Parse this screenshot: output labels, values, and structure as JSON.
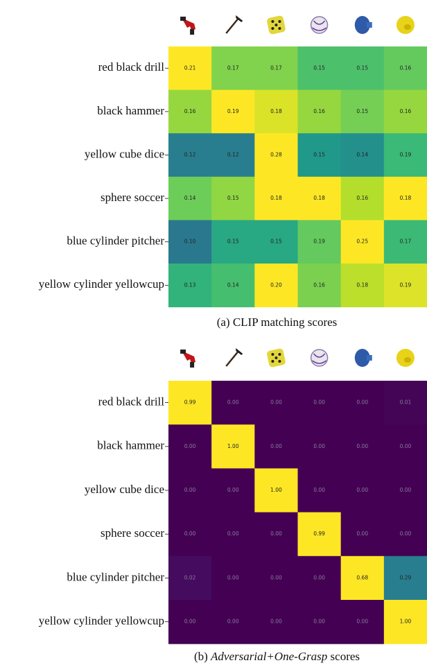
{
  "chart_data": [
    {
      "type": "heatmap",
      "colormap": "viridis",
      "rows": [
        "red black drill",
        "black hammer",
        "yellow cube dice",
        "sphere soccer",
        "blue cylinder pitcher",
        "yellow cylinder yellowcup"
      ],
      "values": [
        [
          0.21,
          0.17,
          0.17,
          0.15,
          0.15,
          0.16
        ],
        [
          0.16,
          0.19,
          0.18,
          0.16,
          0.15,
          0.16
        ],
        [
          0.12,
          0.12,
          0.28,
          0.15,
          0.14,
          0.19
        ],
        [
          0.14,
          0.15,
          0.18,
          0.18,
          0.16,
          0.18
        ],
        [
          0.1,
          0.15,
          0.15,
          0.19,
          0.25,
          0.17
        ],
        [
          0.13,
          0.14,
          0.2,
          0.16,
          0.18,
          0.19
        ]
      ],
      "value_labels": [
        [
          "0.21",
          "0.17",
          "0.17",
          "0.15",
          "0.15",
          "0.16"
        ],
        [
          "0.16",
          "0.19",
          "0.18",
          "0.16",
          "0.15",
          "0.16"
        ],
        [
          "0.12",
          "0.12",
          "0.28",
          "0.15",
          "0.14",
          "0.19"
        ],
        [
          "0.14",
          "0.15",
          "0.18",
          "0.18",
          "0.16",
          "0.18"
        ],
        [
          "0.10",
          "0.15",
          "0.15",
          "0.19",
          "0.25",
          "0.17"
        ],
        [
          "0.13",
          "0.14",
          "0.20",
          "0.16",
          "0.18",
          "0.19"
        ]
      ],
      "caption": "(a) CLIP matching scores"
    },
    {
      "type": "heatmap",
      "colormap": "viridis",
      "rows": [
        "red black drill",
        "black hammer",
        "yellow cube dice",
        "sphere soccer",
        "blue cylinder pitcher",
        "yellow cylinder yellowcup"
      ],
      "values": [
        [
          0.99,
          0,
          0,
          0,
          0,
          0.01
        ],
        [
          0,
          1,
          0,
          0,
          0,
          0
        ],
        [
          0,
          0,
          1,
          0,
          0,
          0
        ],
        [
          0,
          0,
          0,
          0.99,
          0,
          0
        ],
        [
          0.02,
          0,
          0,
          0,
          0.68,
          0.29
        ],
        [
          0,
          0,
          0,
          0,
          0,
          1
        ]
      ],
      "value_labels": [
        [
          "0.99",
          "0.00",
          "0.00",
          "0.00",
          "0.00",
          "0.01"
        ],
        [
          "0.00",
          "1.00",
          "0.00",
          "0.00",
          "0.00",
          "0.00"
        ],
        [
          "0.00",
          "0.00",
          "1.00",
          "0.00",
          "0.00",
          "0.00"
        ],
        [
          "0.00",
          "0.00",
          "0.00",
          "0.99",
          "0.00",
          "0.00"
        ],
        [
          "0.02",
          "0.00",
          "0.00",
          "0.00",
          "0.68",
          "0.29"
        ],
        [
          "0.00",
          "0.00",
          "0.00",
          "0.00",
          "0.00",
          "1.00"
        ]
      ],
      "caption": [
        "(b)",
        "Adversarial+One-Grasp",
        "scores"
      ]
    }
  ]
}
